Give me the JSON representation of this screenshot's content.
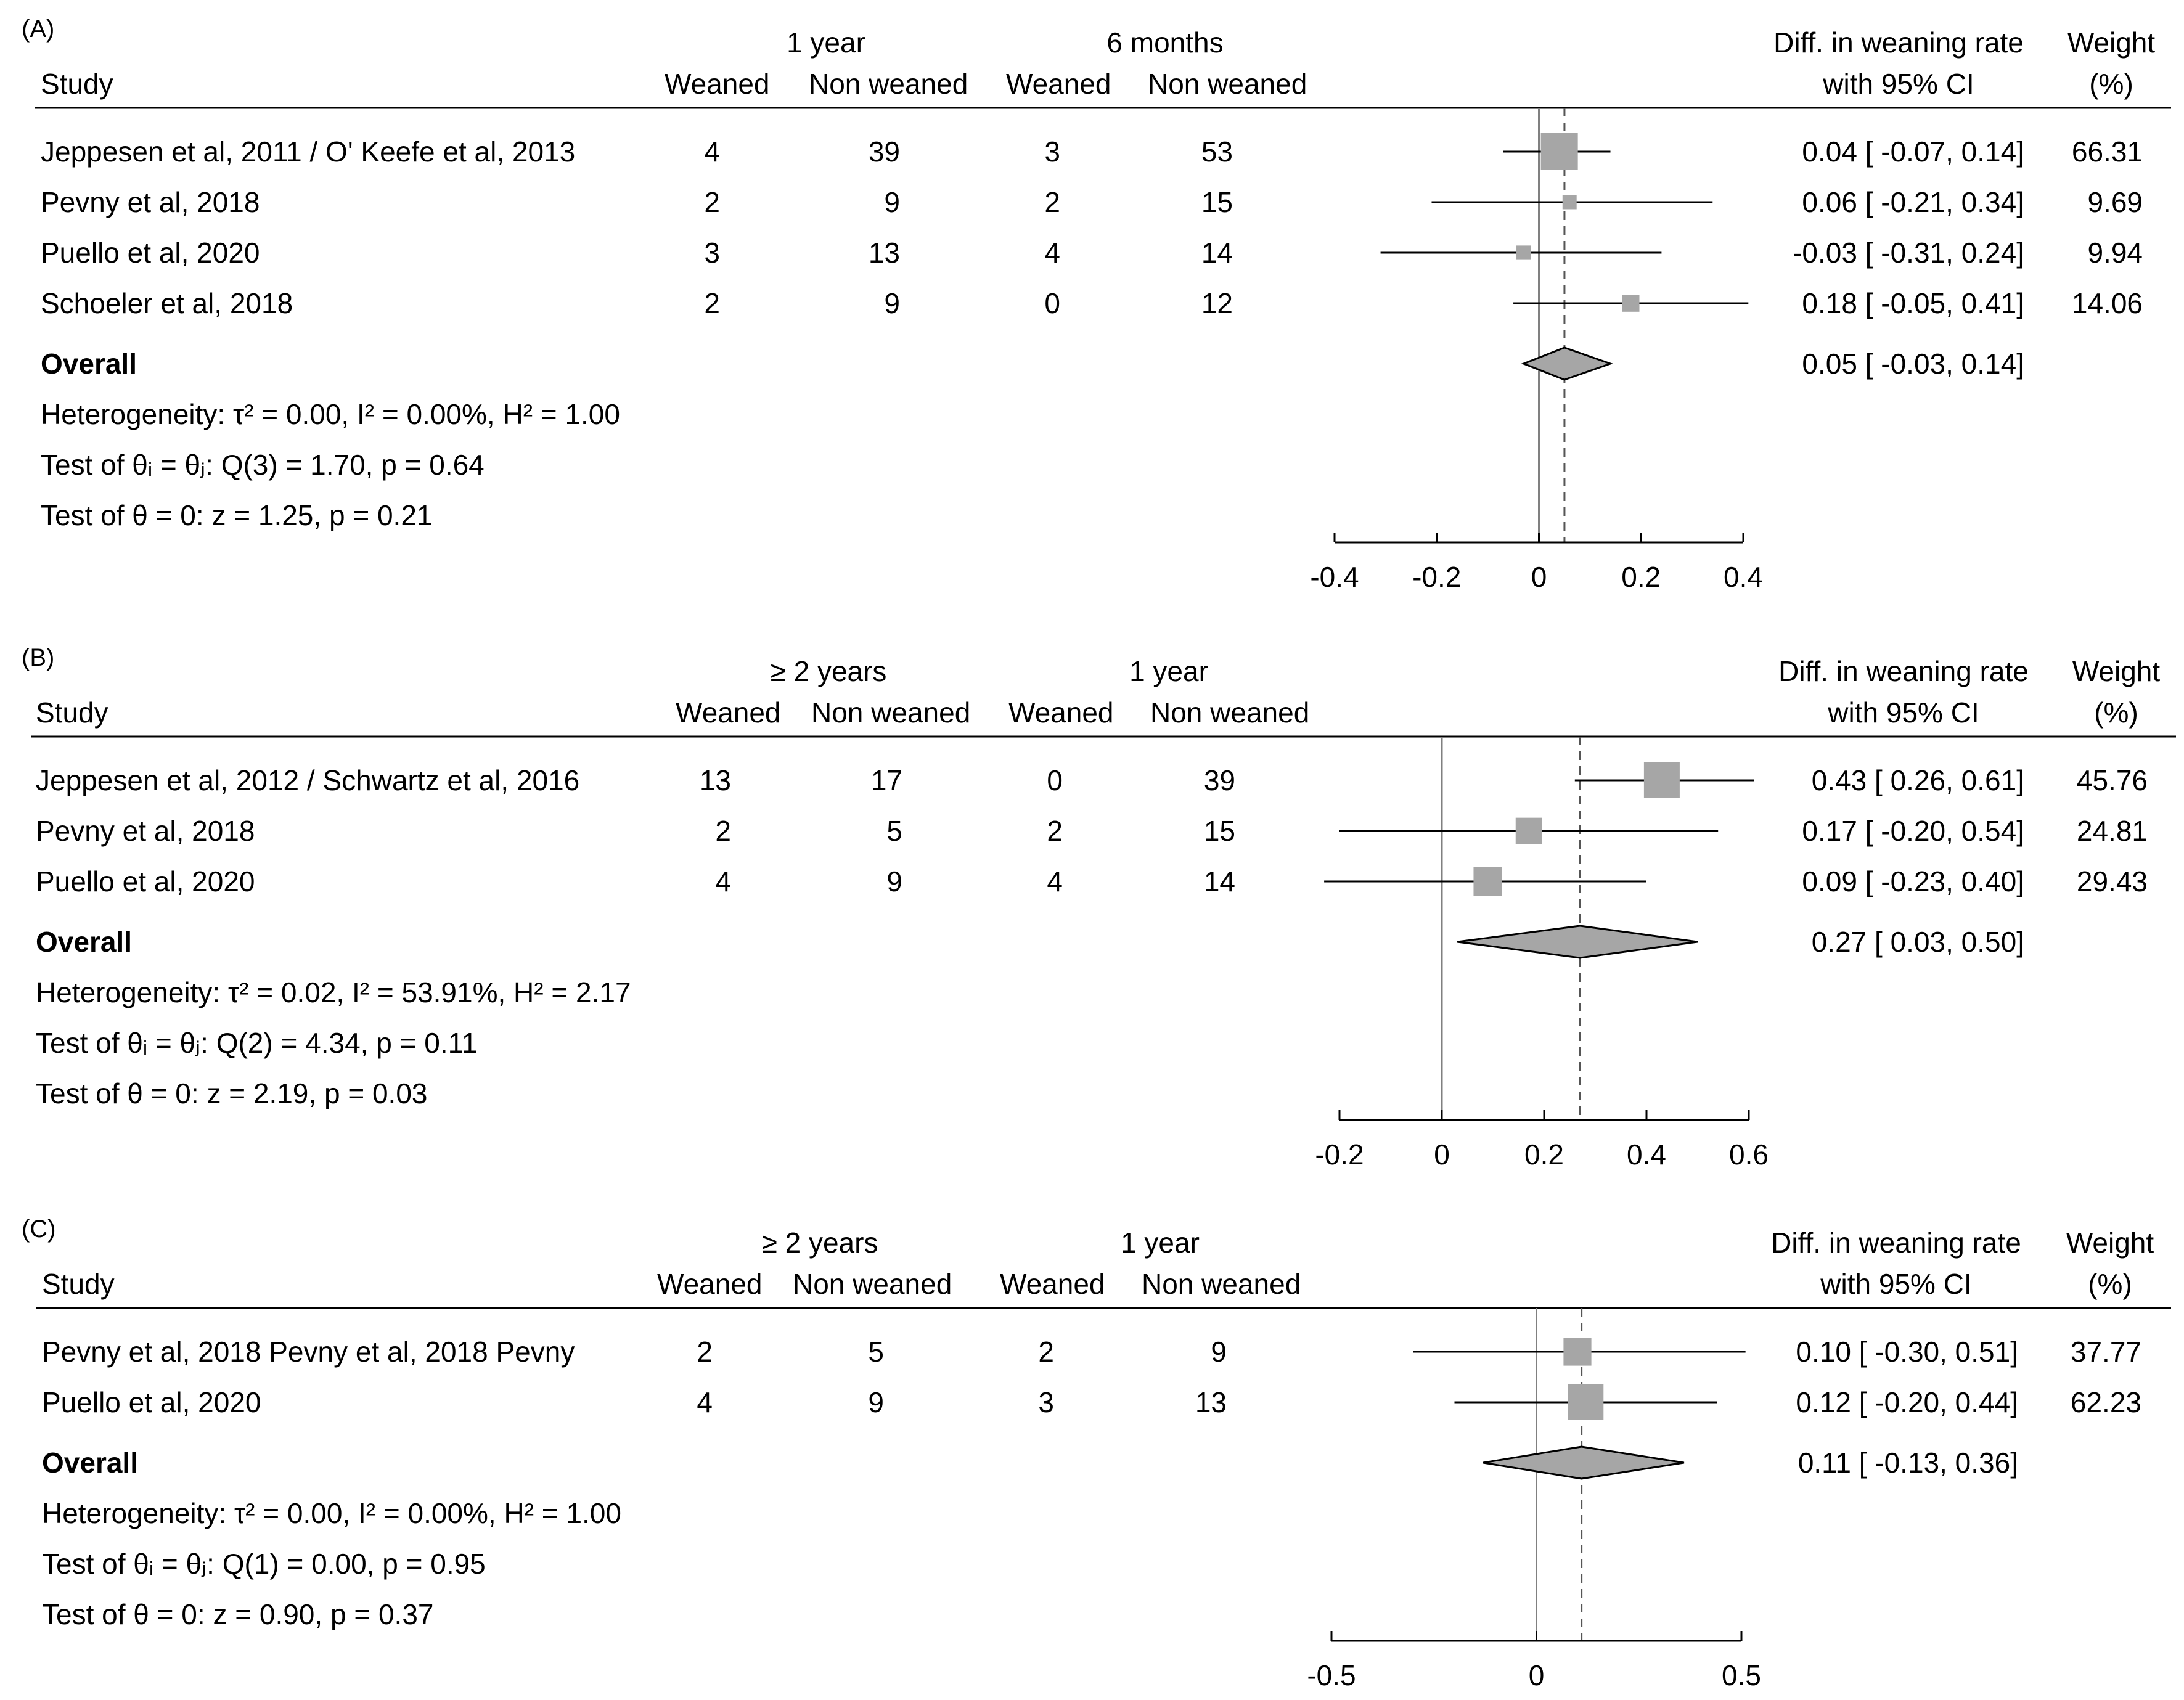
{
  "chart_data": [
    {
      "type": "forest",
      "panel_label": "(A)",
      "group1_label": "1 year",
      "group2_label": "6 months",
      "col_study": "Study",
      "col_weaned1": "Weaned",
      "col_nonweaned1": "Non weaned",
      "col_weaned2": "Weaned",
      "col_nonweaned2": "Non weaned",
      "col_effect_line1": "Diff. in weaning rate",
      "col_effect_line2": "with 95% CI",
      "col_weight_line1": "Weight",
      "col_weight_line2": "(%)",
      "studies": [
        {
          "name": "Jeppesen et al, 2011 / O' Keefe et al, 2013",
          "w1": "4",
          "nw1": "39",
          "w2": "3",
          "nw2": "53",
          "est": 0.04,
          "lo": -0.07,
          "hi": 0.14,
          "ci_text": "0.04 [ -0.07,  0.14]",
          "weight": "66.31",
          "weight_value": 66.31
        },
        {
          "name": "Pevny et al, 2018",
          "w1": "2",
          "nw1": "9",
          "w2": "2",
          "nw2": "15",
          "est": 0.06,
          "lo": -0.21,
          "hi": 0.34,
          "ci_text": "0.06 [ -0.21,  0.34]",
          "weight": "9.69",
          "weight_value": 9.69
        },
        {
          "name": "Puello et al, 2020",
          "w1": "3",
          "nw1": "13",
          "w2": "4",
          "nw2": "14",
          "est": -0.03,
          "lo": -0.31,
          "hi": 0.24,
          "ci_text": "-0.03 [ -0.31,  0.24]",
          "weight": "9.94",
          "weight_value": 9.94
        },
        {
          "name": "Schoeler et al, 2018",
          "w1": "2",
          "nw1": "9",
          "w2": "0",
          "nw2": "12",
          "est": 0.18,
          "lo": -0.05,
          "hi": 0.41,
          "ci_text": "0.18 [ -0.05,  0.41]",
          "weight": "14.06",
          "weight_value": 14.06
        }
      ],
      "overall": {
        "label": "Overall",
        "est": 0.05,
        "lo": -0.03,
        "hi": 0.14,
        "ci_text": "0.05 [ -0.03,  0.14]"
      },
      "heterogeneity": "Heterogeneity: τ² = 0.00, I² = 0.00%, H² = 1.00",
      "test_q": "Test of θᵢ = θⱼ: Q(3) = 1.70, p = 0.64",
      "test_z": "Test of θ = 0: z = 1.25, p = 0.21",
      "x_ticks": [
        -0.4,
        -0.2,
        0,
        0.2,
        0.4
      ],
      "x_tick_labels": [
        "-0.4",
        "-0.2",
        "0",
        "0.2",
        "0.4"
      ],
      "xlim": [
        -0.4,
        0.4
      ],
      "axis_max_display": 0.41
    },
    {
      "type": "forest",
      "panel_label": "(B)",
      "group1_label": "≥ 2 years",
      "group2_label": "1 year",
      "col_study": "Study",
      "col_weaned1": "Weaned",
      "col_nonweaned1": "Non weaned",
      "col_weaned2": "Weaned",
      "col_nonweaned2": "Non weaned",
      "col_effect_line1": "Diff. in weaning rate",
      "col_effect_line2": "with 95% CI",
      "col_weight_line1": "Weight",
      "col_weight_line2": "(%)",
      "studies": [
        {
          "name": "Jeppesen et al, 2012 / Schwartz et al, 2016",
          "w1": "13",
          "nw1": "17",
          "w2": "0",
          "nw2": "39",
          "est": 0.43,
          "lo": 0.26,
          "hi": 0.61,
          "ci_text": "0.43 [  0.26,  0.61]",
          "weight": "45.76",
          "weight_value": 45.76
        },
        {
          "name": "Pevny et al, 2018",
          "w1": "2",
          "nw1": "5",
          "w2": "2",
          "nw2": "15",
          "est": 0.17,
          "lo": -0.2,
          "hi": 0.54,
          "ci_text": "0.17 [ -0.20,  0.54]",
          "weight": "24.81",
          "weight_value": 24.81
        },
        {
          "name": "Puello et al, 2020",
          "w1": "4",
          "nw1": "9",
          "w2": "4",
          "nw2": "14",
          "est": 0.09,
          "lo": -0.23,
          "hi": 0.4,
          "ci_text": "0.09 [ -0.23,  0.40]",
          "weight": "29.43",
          "weight_value": 29.43
        }
      ],
      "overall": {
        "label": "Overall",
        "est": 0.27,
        "lo": 0.03,
        "hi": 0.5,
        "ci_text": "0.27 [  0.03,  0.50]"
      },
      "heterogeneity": "Heterogeneity: τ² = 0.02, I² = 53.91%, H² = 2.17",
      "test_q": "Test of θᵢ = θⱼ: Q(2) = 4.34, p = 0.11",
      "test_z": "Test of θ = 0: z = 2.19, p = 0.03",
      "x_ticks": [
        -0.2,
        0,
        0.2,
        0.4,
        0.6
      ],
      "x_tick_labels": [
        "-0.2",
        "0",
        "0.2",
        "0.4",
        "0.6"
      ],
      "xlim": [
        -0.2,
        0.6
      ],
      "axis_max_display": 0.61
    },
    {
      "type": "forest",
      "panel_label": "(C)",
      "group1_label": "≥ 2 years",
      "group2_label": "1 year",
      "col_study": "Study",
      "col_weaned1": "Weaned",
      "col_nonweaned1": "Non weaned",
      "col_weaned2": "Weaned",
      "col_nonweaned2": "Non weaned",
      "col_effect_line1": "Diff. in weaning rate",
      "col_effect_line2": "with 95% CI",
      "col_weight_line1": "Weight",
      "col_weight_line2": "(%)",
      "studies": [
        {
          "name": "Pevny et al, 2018 Pevny et al, 2018 Pevny",
          "w1": "2",
          "nw1": "5",
          "w2": "2",
          "nw2": "9",
          "est": 0.1,
          "lo": -0.3,
          "hi": 0.51,
          "ci_text": "0.10 [ -0.30,  0.51]",
          "weight": "37.77",
          "weight_value": 37.77
        },
        {
          "name": "Puello et al, 2020",
          "w1": "4",
          "nw1": "9",
          "w2": "3",
          "nw2": "13",
          "est": 0.12,
          "lo": -0.2,
          "hi": 0.44,
          "ci_text": "0.12 [ -0.20,  0.44]",
          "weight": "62.23",
          "weight_value": 62.23
        }
      ],
      "overall": {
        "label": "Overall",
        "est": 0.11,
        "lo": -0.13,
        "hi": 0.36,
        "ci_text": "0.11 [ -0.13,  0.36]"
      },
      "heterogeneity": "Heterogeneity: τ² = 0.00, I² = 0.00%, H² = 1.00",
      "test_q": "Test of θᵢ = θⱼ: Q(1) = 0.00, p = 0.95",
      "test_z": "Test of θ = 0: z = 0.90, p = 0.37",
      "x_ticks": [
        -0.5,
        0,
        0.5
      ],
      "x_tick_labels": [
        "-0.5",
        "0",
        "0.5"
      ],
      "xlim": [
        -0.5,
        0.5
      ],
      "axis_max_display": 0.51
    }
  ],
  "colors": {
    "marker": "#a6a6a6",
    "line": "#000000",
    "diamond_fill": "#a6a6a6",
    "ref_line": "#808080",
    "dash_line": "#555555"
  }
}
